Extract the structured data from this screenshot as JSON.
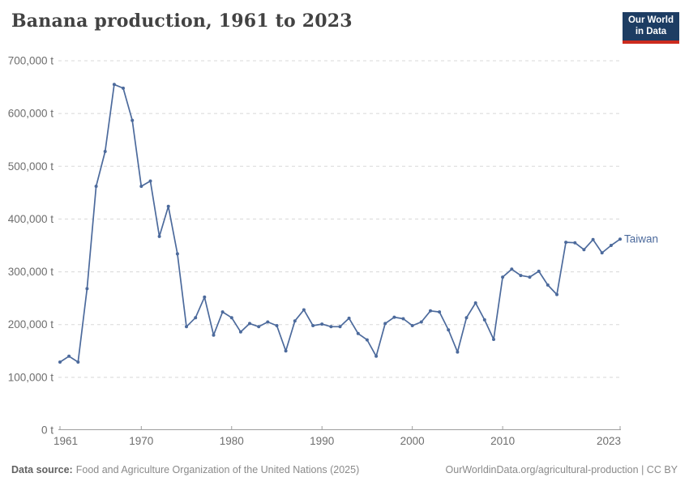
{
  "header": {
    "title": "Banana production, 1961 to 2023",
    "logo": {
      "line1": "Our World",
      "line2": "in Data"
    }
  },
  "chart_data": {
    "type": "line",
    "title": "Banana production, 1961 to 2023",
    "unit": "tonnes",
    "xlim": [
      1961,
      2023
    ],
    "ylim": [
      0,
      700000
    ],
    "grid": "horizontal-dashed",
    "legend": "series-label-at-line-end",
    "xticks": {
      "values": [
        1961,
        1970,
        1980,
        1990,
        2000,
        2010,
        2023
      ],
      "labels": [
        "1961",
        "1970",
        "1980",
        "1990",
        "2000",
        "2010",
        "2023"
      ]
    },
    "yticks": {
      "values": [
        0,
        100000,
        200000,
        300000,
        400000,
        500000,
        600000,
        700000
      ],
      "labels": [
        "0 t",
        "100,000 t",
        "200,000 t",
        "300,000 t",
        "400,000 t",
        "500,000 t",
        "600,000 t",
        "700,000 t"
      ]
    },
    "series": [
      {
        "name": "Taiwan",
        "color": "#4C6A9C",
        "x": [
          1961,
          1962,
          1963,
          1964,
          1965,
          1966,
          1967,
          1968,
          1969,
          1970,
          1971,
          1972,
          1973,
          1974,
          1975,
          1976,
          1977,
          1978,
          1979,
          1980,
          1981,
          1982,
          1983,
          1984,
          1985,
          1986,
          1987,
          1988,
          1989,
          1990,
          1991,
          1992,
          1993,
          1994,
          1995,
          1996,
          1997,
          1998,
          1999,
          2000,
          2001,
          2002,
          2003,
          2004,
          2005,
          2006,
          2007,
          2008,
          2009,
          2010,
          2011,
          2012,
          2013,
          2014,
          2015,
          2016,
          2017,
          2018,
          2019,
          2020,
          2021,
          2022,
          2023
        ],
        "values": [
          129000,
          140000,
          129000,
          268000,
          462000,
          528000,
          655000,
          648000,
          587000,
          462000,
          472000,
          367000,
          424000,
          334000,
          196000,
          213000,
          252000,
          180000,
          224000,
          213000,
          186000,
          202000,
          196000,
          205000,
          198000,
          150000,
          207000,
          228000,
          198000,
          201000,
          196000,
          196000,
          212000,
          183000,
          171000,
          140000,
          202000,
          214000,
          211000,
          198000,
          205000,
          226000,
          224000,
          190000,
          148000,
          213000,
          241000,
          209000,
          172000,
          290000,
          305000,
          293000,
          290000,
          301000,
          275000,
          257000,
          356000,
          355000,
          342000,
          361000,
          336000,
          350000,
          362000
        ]
      }
    ],
    "colors": {
      "line": "#4C6A9C",
      "grid": "#d8d8d8",
      "axis": "#9e9e9e",
      "tick_label": "#6e6e6e"
    }
  },
  "footer": {
    "source_label": "Data source:",
    "source_text": "Food and Agriculture Organization of the United Nations (2025)",
    "link_text": "OurWorldinData.org/agricultural-production",
    "separator": " | ",
    "license": "CC BY"
  }
}
